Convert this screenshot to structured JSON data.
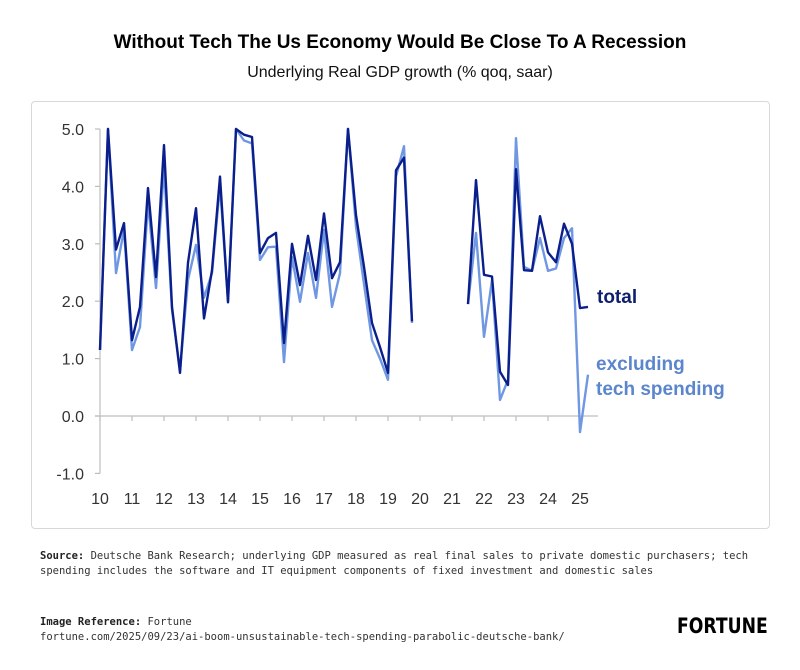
{
  "header": {
    "title": "Without Tech The Us Economy Would Be Close To A Recession",
    "subtitle": "Underlying Real GDP growth (% qoq, saar)"
  },
  "chart_data": {
    "type": "line",
    "title": "Without Tech The Us Economy Would Be Close To A Recession",
    "subtitle": "Underlying Real GDP growth (% qoq, saar)",
    "xlabel": "",
    "ylabel": "",
    "ylim": [
      -1.0,
      5.0
    ],
    "grid": false,
    "legend": "inline-right",
    "y_ticks": [
      "5.0",
      "4.0",
      "3.0",
      "2.0",
      "1.0",
      "0.0",
      "-1.0"
    ],
    "x_ticks": [
      "10",
      "11",
      "12",
      "13",
      "14",
      "15",
      "16",
      "17",
      "18",
      "19",
      "20",
      "21",
      "22",
      "23",
      "24",
      "25"
    ],
    "x": [
      "2010Q1",
      "2010Q2",
      "2010Q3",
      "2010Q4",
      "2011Q1",
      "2011Q2",
      "2011Q3",
      "2011Q4",
      "2012Q1",
      "2012Q2",
      "2012Q3",
      "2012Q4",
      "2013Q1",
      "2013Q2",
      "2013Q3",
      "2013Q4",
      "2014Q1",
      "2014Q2",
      "2014Q3",
      "2014Q4",
      "2015Q1",
      "2015Q2",
      "2015Q3",
      "2015Q4",
      "2016Q1",
      "2016Q2",
      "2016Q3",
      "2016Q4",
      "2017Q1",
      "2017Q2",
      "2017Q3",
      "2017Q4",
      "2018Q1",
      "2018Q2",
      "2018Q3",
      "2018Q4",
      "2019Q1",
      "2019Q2",
      "2019Q3",
      "2019Q4",
      "2020Q1",
      "2020Q2",
      "2020Q3",
      "2020Q4",
      "2021Q1",
      "2021Q2",
      "2021Q3",
      "2021Q4",
      "2022Q1",
      "2022Q2",
      "2022Q3",
      "2022Q4",
      "2023Q1",
      "2023Q2",
      "2023Q3",
      "2023Q4",
      "2024Q1",
      "2024Q2",
      "2024Q3",
      "2024Q4",
      "2025Q1",
      "2025Q2"
    ],
    "series": [
      {
        "name": "total",
        "color": "#0b1f8c",
        "values": [
          1.15,
          5.0,
          2.9,
          3.36,
          1.32,
          1.9,
          3.97,
          2.42,
          4.72,
          1.9,
          0.75,
          2.67,
          3.62,
          1.7,
          2.54,
          4.17,
          1.98,
          5.0,
          4.9,
          4.86,
          2.84,
          3.1,
          3.19,
          1.27,
          3.0,
          2.28,
          3.14,
          2.37,
          3.53,
          2.4,
          2.68,
          5.0,
          3.5,
          2.6,
          1.62,
          1.2,
          0.75,
          4.28,
          4.5,
          1.65,
          null,
          null,
          null,
          null,
          null,
          null,
          1.95,
          4.11,
          2.46,
          2.43,
          0.77,
          0.54,
          4.3,
          2.54,
          2.53,
          3.48,
          2.85,
          2.68,
          3.35,
          3.0,
          1.88,
          1.9
        ]
      },
      {
        "name": "excluding tech spending",
        "color": "#6f97e2",
        "values": [
          1.15,
          5.0,
          2.49,
          3.25,
          1.15,
          1.55,
          3.73,
          2.23,
          4.34,
          1.85,
          0.8,
          2.37,
          2.98,
          2.06,
          2.49,
          4.02,
          2.0,
          5.0,
          4.8,
          4.75,
          2.72,
          2.94,
          2.95,
          0.94,
          2.77,
          1.99,
          2.84,
          2.06,
          3.24,
          1.9,
          2.49,
          5.0,
          3.3,
          2.3,
          1.32,
          1.0,
          0.63,
          4.17,
          4.7,
          1.62,
          null,
          null,
          null,
          null,
          null,
          null,
          1.95,
          3.19,
          1.38,
          2.37,
          0.28,
          0.63,
          4.84,
          2.6,
          2.53,
          3.1,
          2.53,
          2.57,
          3.1,
          3.27,
          -0.28,
          0.72
        ]
      }
    ],
    "labels": {
      "total": "total",
      "excluding_line1": "excluding",
      "excluding_line2": "tech spending"
    }
  },
  "footer": {
    "source_label": "Source:",
    "source_text": "Deutsche Bank Research; underlying GDP measured as real final sales to private domestic purchasers; tech spending includes the software and IT equipment components of fixed investment and domestic sales",
    "reference_label": "Image Reference:",
    "reference_text": "Fortune",
    "url": "fortune.com/2025/09/23/ai-boom-unsustainable-tech-spending-parabolic-deutsche-bank/",
    "logo": "FORTUNE"
  }
}
